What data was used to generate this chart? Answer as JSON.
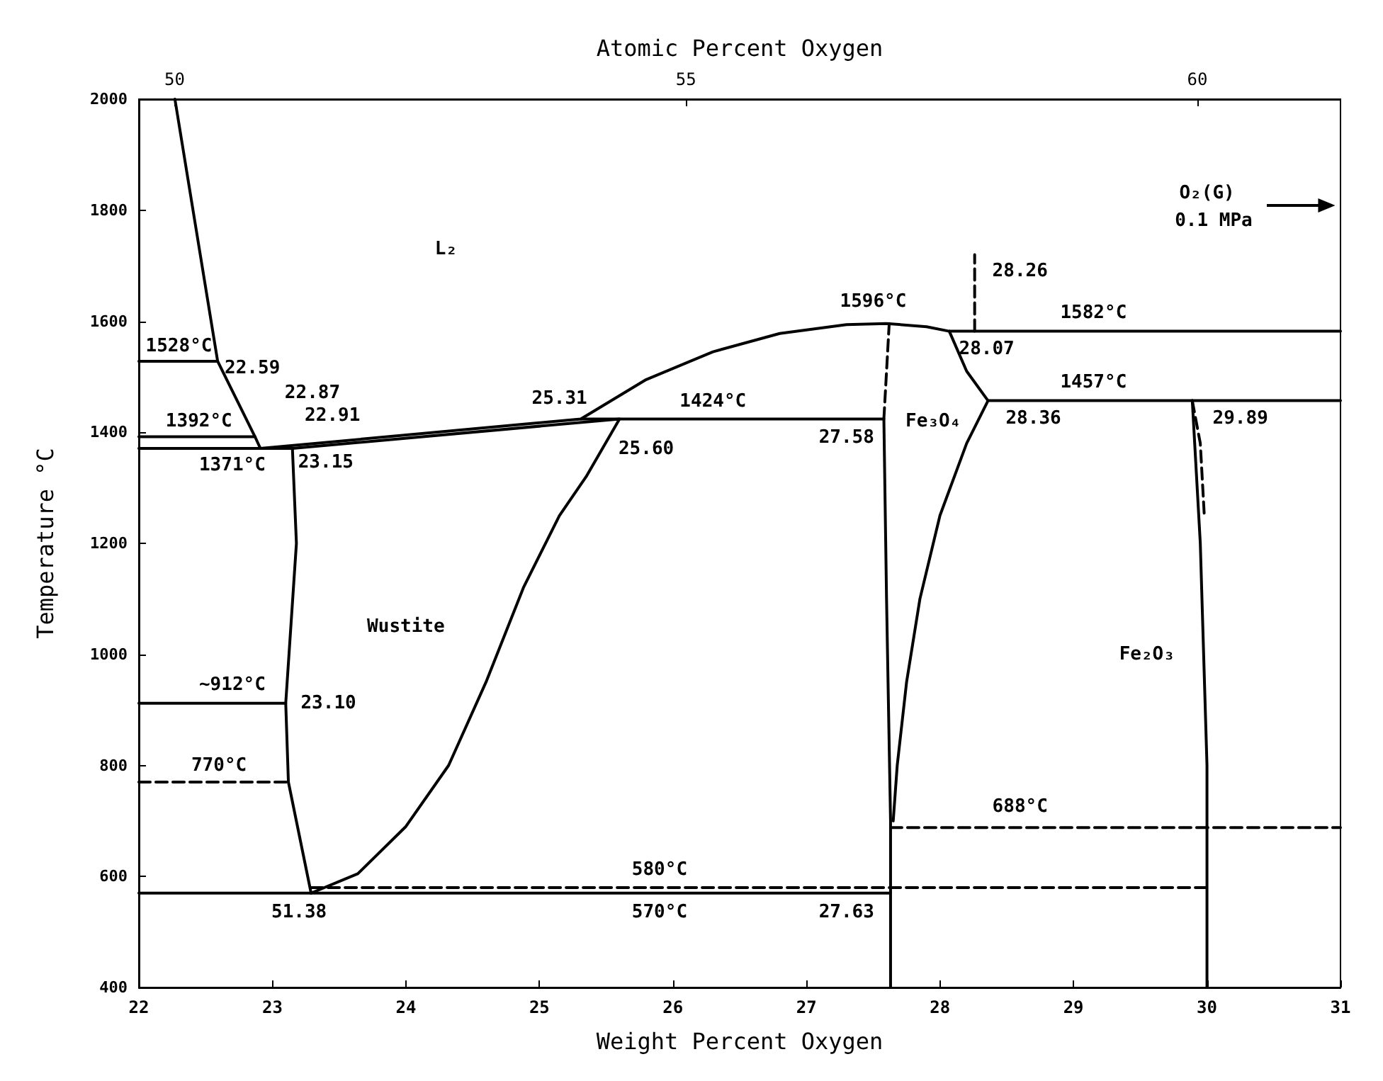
{
  "chart_data": {
    "type": "line",
    "xlabel": "Weight Percent Oxygen",
    "ylabel": "Temperature °C",
    "x2label": "Atomic Percent Oxygen",
    "xlim": [
      22,
      31
    ],
    "xticks": [
      22,
      23,
      24,
      25,
      26,
      27,
      28,
      29,
      30,
      31
    ],
    "x2lim": [
      49.65,
      61.4
    ],
    "x2ticks": [
      50,
      55,
      60
    ],
    "ylim": [
      400,
      2000
    ],
    "yticks": [
      400,
      600,
      800,
      1000,
      1200,
      1400,
      1600,
      1800,
      2000
    ],
    "grid": false,
    "series": [
      {
        "color": "#000000",
        "x": [
          22.27,
          22.59,
          22.87,
          22.91,
          25.31,
          25.8,
          26.3,
          26.8,
          27.3,
          27.6,
          27.9,
          28.07,
          31
        ],
        "values": [
          2000,
          1528,
          1392,
          1371,
          1424,
          1495,
          1545,
          1578,
          1594,
          1596,
          1590,
          1582,
          1582
        ]
      },
      {
        "color": "#000000",
        "x": [
          22,
          22.59
        ],
        "values": [
          1528,
          1528
        ]
      },
      {
        "color": "#000000",
        "x": [
          22,
          22.87
        ],
        "values": [
          1392,
          1392
        ]
      },
      {
        "color": "#000000",
        "x": [
          22,
          23.15,
          25.6,
          25.35,
          25.15,
          24.88,
          24.6,
          24.32,
          24.0,
          23.64,
          23.29
        ],
        "values": [
          1371,
          1371,
          1424,
          1320,
          1250,
          1120,
          950,
          800,
          690,
          605,
          570
        ]
      },
      {
        "color": "#000000",
        "x": [
          25.31,
          27.58,
          27.6,
          27.63,
          27.63
        ],
        "values": [
          1424,
          1424,
          1100,
          700,
          400
        ]
      },
      {
        "color": "#000000",
        "x": [
          23.15,
          23.18,
          23.1,
          23.12,
          23.29
        ],
        "values": [
          1371,
          1200,
          912,
          770,
          570
        ]
      },
      {
        "color": "#000000",
        "x": [
          28.07,
          28.2,
          28.36,
          28.2,
          28.0,
          27.85,
          27.75,
          27.68,
          27.65
        ],
        "values": [
          1582,
          1510,
          1457,
          1380,
          1250,
          1100,
          950,
          800,
          700
        ]
      },
      {
        "color": "#000000",
        "x": [
          28.36,
          31
        ],
        "values": [
          1457,
          1457
        ]
      },
      {
        "color": "#000000",
        "x": [
          27.58,
          27.62
        ],
        "values": [
          1424,
          1596
        ],
        "line_style": "dashed"
      },
      {
        "color": "#000000",
        "x": [
          28.26,
          28.26
        ],
        "values": [
          1582,
          1720
        ],
        "line_style": "dashed"
      },
      {
        "color": "#000000",
        "x": [
          29.89,
          29.95,
          30.0,
          30.0
        ],
        "values": [
          1457,
          1200,
          800,
          400
        ]
      },
      {
        "color": "#000000",
        "x": [
          29.89,
          29.95,
          29.98
        ],
        "values": [
          1457,
          1380,
          1250
        ],
        "line_style": "dashed"
      },
      {
        "color": "#000000",
        "x": [
          22,
          23.1
        ],
        "values": [
          912,
          912
        ]
      },
      {
        "color": "#000000",
        "x": [
          22,
          23.12
        ],
        "values": [
          770,
          770
        ],
        "line_style": "dashed"
      },
      {
        "color": "#000000",
        "x": [
          22,
          27.63
        ],
        "values": [
          570,
          570
        ]
      },
      {
        "color": "#000000",
        "x": [
          23.29,
          30.0
        ],
        "values": [
          580,
          580
        ],
        "line_style": "dashed"
      },
      {
        "color": "#000000",
        "x": [
          27.63,
          31
        ],
        "values": [
          688,
          688
        ],
        "line_style": "dashed"
      }
    ],
    "annotations": [
      "L₂",
      "1528°C",
      "22.59",
      "22.87",
      "22.91",
      "1392°C",
      "1371°C",
      "23.15",
      "25.31",
      "25.60",
      "1424°C",
      "27.58",
      "1596°C",
      "28.26",
      "28.07",
      "1582°C",
      "1457°C",
      "28.36",
      "29.89",
      "Fe₃O₄",
      "Wustite",
      "~912°C",
      "23.10",
      "770°C",
      "580°C",
      "570°C",
      "51.38",
      "27.63",
      "688°C",
      "Fe₂O₃",
      "O₂(G)",
      "0.1 MPa"
    ]
  }
}
